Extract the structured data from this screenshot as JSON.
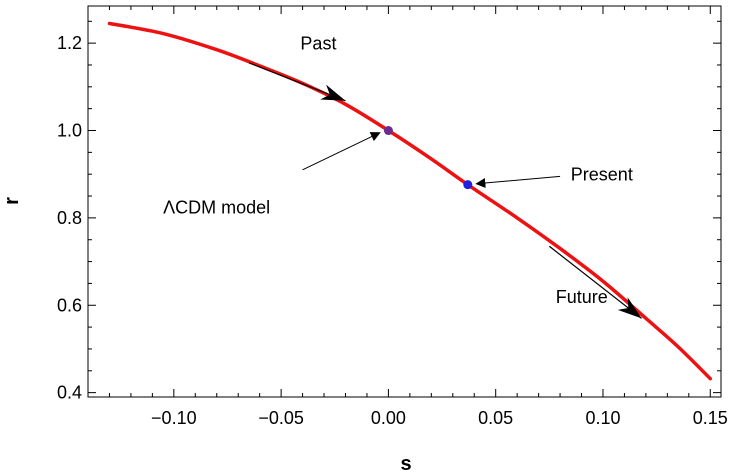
{
  "chart_data": {
    "type": "line",
    "xlabel": "s",
    "ylabel": "r",
    "xlim": [
      -0.14,
      0.155
    ],
    "ylim": [
      0.39,
      1.285
    ],
    "x_ticks": [
      -0.1,
      -0.05,
      0.0,
      0.05,
      0.1,
      0.15
    ],
    "x_tick_labels": [
      "−0.10",
      "−0.05",
      "0.00",
      "0.05",
      "0.10",
      "0.15"
    ],
    "y_ticks": [
      0.4,
      0.6,
      0.8,
      1.0,
      1.2
    ],
    "y_tick_labels": [
      "0.4",
      "0.6",
      "0.8",
      "1.0",
      "1.2"
    ],
    "grid": false,
    "series": [
      {
        "color": "#ee1111",
        "x": [
          -0.13,
          -0.105,
          -0.08,
          -0.06,
          -0.04,
          -0.02,
          0.0,
          0.02,
          0.037,
          0.06,
          0.08,
          0.1,
          0.12,
          0.135,
          0.15
        ],
        "y": [
          1.245,
          1.222,
          1.185,
          1.148,
          1.108,
          1.06,
          1.0,
          0.935,
          0.876,
          0.8,
          0.73,
          0.655,
          0.57,
          0.505,
          0.432
        ]
      }
    ],
    "points": [
      {
        "x": 0.0,
        "y": 1.0,
        "color": "#6a2c91"
      },
      {
        "x": 0.037,
        "y": 0.876,
        "color": "#1f1fe0"
      }
    ],
    "direction_arrows": [
      {
        "from": [
          -0.065,
          1.155
        ],
        "to": [
          -0.02,
          1.068
        ]
      },
      {
        "from": [
          0.075,
          0.735
        ],
        "to": [
          0.118,
          0.57
        ]
      }
    ],
    "annotations": [
      {
        "text": "Past",
        "x": -0.041,
        "y": 1.185
      },
      {
        "text": "ΛCDM model",
        "x": -0.105,
        "y": 0.81,
        "arrow_from": [
          -0.04,
          0.91
        ],
        "arrow_to": [
          -0.004,
          0.995
        ]
      },
      {
        "text": "Present",
        "x": 0.085,
        "y": 0.885,
        "arrow_from": [
          0.08,
          0.895
        ],
        "arrow_to": [
          0.041,
          0.878
        ]
      },
      {
        "text": "Future",
        "x": 0.078,
        "y": 0.605
      }
    ]
  }
}
